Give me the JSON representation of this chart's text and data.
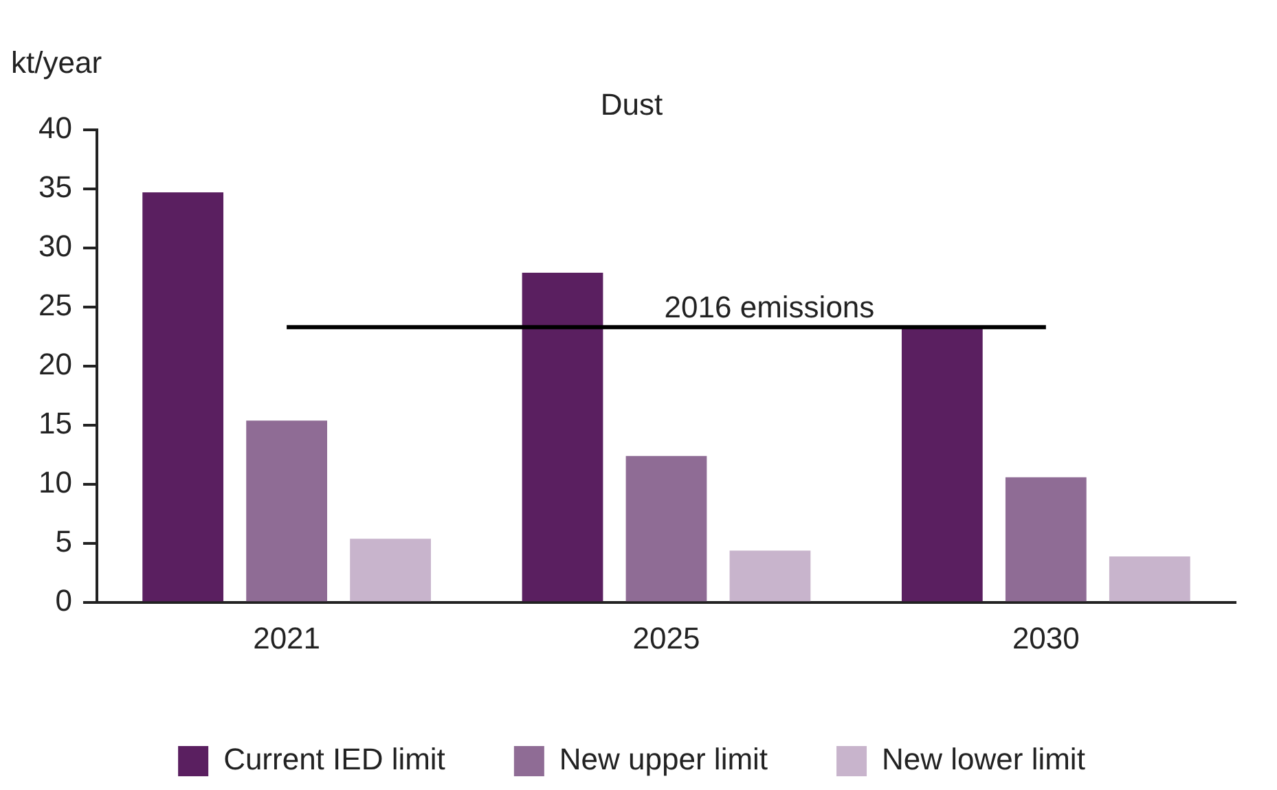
{
  "chart_data": {
    "type": "bar",
    "title": "Dust",
    "ylabel": "kt/year",
    "categories": [
      "2021",
      "2025",
      "2030"
    ],
    "series": [
      {
        "name": "Current IED limit",
        "color": "#5a1f60",
        "values": [
          34.7,
          27.9,
          23.3
        ]
      },
      {
        "name": "New upper limit",
        "color": "#8f6c95",
        "values": [
          15.4,
          12.4,
          10.6
        ]
      },
      {
        "name": "New lower limit",
        "color": "#c8b4cc",
        "values": [
          5.4,
          4.4,
          3.9
        ]
      }
    ],
    "ylim": [
      0,
      40
    ],
    "yticks": [
      0,
      5,
      10,
      15,
      20,
      25,
      30,
      35,
      40
    ],
    "grid": false,
    "legend": "bottom",
    "ref_lines": [
      {
        "axis": "y",
        "value": 23.3,
        "label": "2016 emissions",
        "color": "#000000"
      }
    ]
  }
}
